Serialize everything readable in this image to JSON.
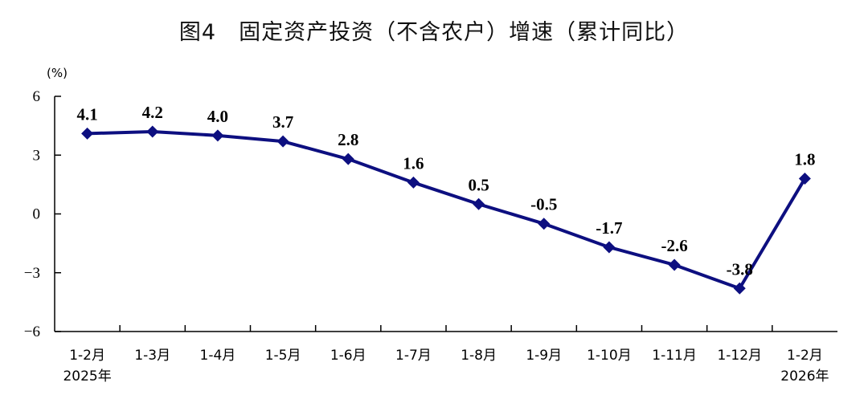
{
  "title": "图4　固定资产投资（不含农户）增速（累计同比）",
  "chart_data": {
    "type": "line",
    "title": "图4　固定资产投资（不含农户）增速（累计同比）",
    "unit": "(%)",
    "categories": [
      "1-2月",
      "1-3月",
      "1-4月",
      "1-5月",
      "1-6月",
      "1-7月",
      "1-8月",
      "1-9月",
      "1-10月",
      "1-11月",
      "1-12月",
      "1-2月"
    ],
    "category_sublabels": [
      "2025年",
      "",
      "",
      "",
      "",
      "",
      "",
      "",
      "",
      "",
      "",
      "2026年"
    ],
    "series": [
      {
        "values": [
          4.1,
          4.2,
          4.0,
          3.7,
          2.8,
          1.6,
          0.5,
          -0.5,
          -1.7,
          -2.6,
          -3.8,
          1.8
        ],
        "color": "#0d0f80",
        "marker": "diamond"
      }
    ],
    "data_labels": [
      "4.1",
      "4.2",
      "4.0",
      "3.7",
      "2.8",
      "1.6",
      "0.5",
      "-0.5",
      "-1.7",
      "-2.6",
      "-3.8",
      "1.8"
    ],
    "ylim": [
      -6,
      6
    ],
    "yticks": [
      6,
      3,
      0,
      -3,
      -6
    ],
    "ytick_labels": [
      "6",
      "3",
      "0",
      "−3",
      "−6"
    ],
    "grid": false,
    "xlabel": "",
    "ylabel": ""
  }
}
